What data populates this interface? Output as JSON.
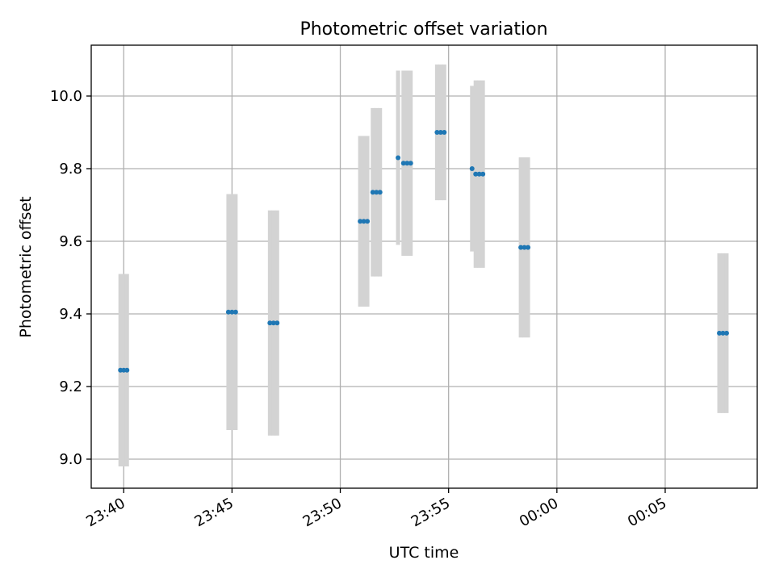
{
  "chart_data": {
    "type": "scatter",
    "title": "Photometric offset variation",
    "xlabel": "UTC time",
    "ylabel": "Photometric offset",
    "x_axis_kind": "time",
    "xlim": [
      "23:38:30",
      "00:09:15"
    ],
    "ylim": [
      8.92,
      10.14
    ],
    "x_ticks": [
      "23:40",
      "23:45",
      "23:50",
      "23:55",
      "00:00",
      "00:05"
    ],
    "y_ticks": [
      "9.0",
      "9.2",
      "9.4",
      "9.6",
      "9.8",
      "10.0"
    ],
    "grid": true,
    "series": [
      {
        "marker_color": "#1f77b4",
        "errorbar_color": "#d3d3d3",
        "points": [
          {
            "x": "23:39:51",
            "y": 9.245,
            "yerr": 0.265
          },
          {
            "x": "23:40:00",
            "y": 9.245,
            "yerr": 0.265
          },
          {
            "x": "23:40:09",
            "y": 9.245,
            "yerr": 0.265
          },
          {
            "x": "23:44:50",
            "y": 9.405,
            "yerr": 0.325
          },
          {
            "x": "23:45:00",
            "y": 9.405,
            "yerr": 0.325
          },
          {
            "x": "23:45:10",
            "y": 9.405,
            "yerr": 0.325
          },
          {
            "x": "23:46:45",
            "y": 9.375,
            "yerr": 0.31
          },
          {
            "x": "23:46:55",
            "y": 9.375,
            "yerr": 0.31
          },
          {
            "x": "23:47:05",
            "y": 9.375,
            "yerr": 0.31
          },
          {
            "x": "23:50:55",
            "y": 9.655,
            "yerr": 0.235
          },
          {
            "x": "23:51:05",
            "y": 9.655,
            "yerr": 0.235
          },
          {
            "x": "23:51:15",
            "y": 9.655,
            "yerr": 0.235
          },
          {
            "x": "23:51:30",
            "y": 9.735,
            "yerr": 0.232
          },
          {
            "x": "23:51:40",
            "y": 9.735,
            "yerr": 0.232
          },
          {
            "x": "23:51:50",
            "y": 9.735,
            "yerr": 0.232
          },
          {
            "x": "23:52:40",
            "y": 9.83,
            "yerr": 0.24
          },
          {
            "x": "23:52:55",
            "y": 9.815,
            "yerr": 0.255
          },
          {
            "x": "23:53:05",
            "y": 9.815,
            "yerr": 0.255
          },
          {
            "x": "23:53:15",
            "y": 9.815,
            "yerr": 0.255
          },
          {
            "x": "23:54:28",
            "y": 9.9,
            "yerr": 0.187
          },
          {
            "x": "23:54:38",
            "y": 9.9,
            "yerr": 0.187
          },
          {
            "x": "23:54:48",
            "y": 9.9,
            "yerr": 0.187
          },
          {
            "x": "23:56:05",
            "y": 9.8,
            "yerr": 0.228
          },
          {
            "x": "23:56:15",
            "y": 9.785,
            "yerr": 0.258
          },
          {
            "x": "23:56:25",
            "y": 9.785,
            "yerr": 0.258
          },
          {
            "x": "23:56:35",
            "y": 9.785,
            "yerr": 0.258
          },
          {
            "x": "23:58:20",
            "y": 9.583,
            "yerr": 0.248
          },
          {
            "x": "23:58:30",
            "y": 9.583,
            "yerr": 0.248
          },
          {
            "x": "23:58:40",
            "y": 9.583,
            "yerr": 0.248
          },
          {
            "x": "00:07:30",
            "y": 9.347,
            "yerr": 0.22
          },
          {
            "x": "00:07:40",
            "y": 9.347,
            "yerr": 0.22
          },
          {
            "x": "00:07:50",
            "y": 9.347,
            "yerr": 0.22
          }
        ]
      }
    ]
  }
}
